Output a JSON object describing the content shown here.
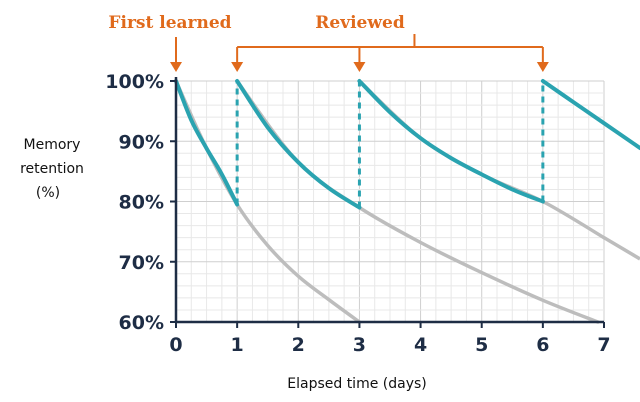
{
  "annotations": {
    "first_learned": "First learned",
    "reviewed": "Reviewed"
  },
  "colors": {
    "accent": "#e06a1c",
    "teal": "#2aa3b0",
    "gray": "#bdbdbd",
    "axis": "#1e2d45",
    "grid_minor": "#e8e8e8",
    "grid_major": "#cfcfcf"
  },
  "chart_data": {
    "type": "line",
    "xlabel": "Elapsed time (days)",
    "ylabel": "Memory\nretention\n(%)",
    "ylabel_lines": [
      "Memory",
      "retention",
      "(%)"
    ],
    "xlim": [
      0,
      7
    ],
    "ylim": [
      60,
      100
    ],
    "x_ticks": [
      "0",
      "1",
      "2",
      "3",
      "4",
      "5",
      "6",
      "7"
    ],
    "y_ticks": [
      "60%",
      "70%",
      "80%",
      "90%",
      "100%"
    ],
    "y_tick_values": [
      60,
      70,
      80,
      90,
      100
    ],
    "grid": true,
    "review_days": [
      1,
      3,
      6
    ],
    "first_learned_day": 0,
    "series": [
      {
        "role": "forgetting-after-learning",
        "color": "gray",
        "x": [
          0,
          0.5,
          1,
          1.5,
          2,
          2.5,
          3
        ],
        "y": [
          100,
          88.8,
          79.5,
          72.7,
          67.6,
          63.7,
          60
        ]
      },
      {
        "role": "forgetting-after-review-1",
        "color": "gray",
        "x": [
          1,
          2,
          3,
          4,
          5,
          6,
          6.9
        ],
        "y": [
          100,
          86.5,
          79.0,
          73.2,
          68.2,
          63.6,
          60
        ]
      },
      {
        "role": "forgetting-after-review-2",
        "color": "gray",
        "x": [
          3,
          4,
          5,
          6,
          7
        ],
        "y": [
          100,
          90.5,
          84.5,
          80,
          74.0
        ]
      },
      {
        "role": "retention-with-reviews",
        "color": "teal",
        "segments": [
          {
            "x": [
              0,
              0.25,
              0.5,
              0.75,
              1
            ],
            "y": [
              100,
              93.5,
              88.8,
              84.5,
              79.5
            ]
          },
          {
            "x": [
              1,
              1.5,
              2,
              2.5,
              3
            ],
            "y": [
              100,
              92.3,
              86.5,
              82.2,
              79.0
            ]
          },
          {
            "x": [
              3,
              3.5,
              4,
              4.5,
              5,
              5.5,
              6
            ],
            "y": [
              100,
              94.8,
              90.5,
              87.2,
              84.5,
              82.0,
              80
            ]
          },
          {
            "x": [
              6,
              6.5,
              7
            ],
            "y": [
              100,
              96.5,
              93.0
            ]
          }
        ]
      }
    ]
  }
}
